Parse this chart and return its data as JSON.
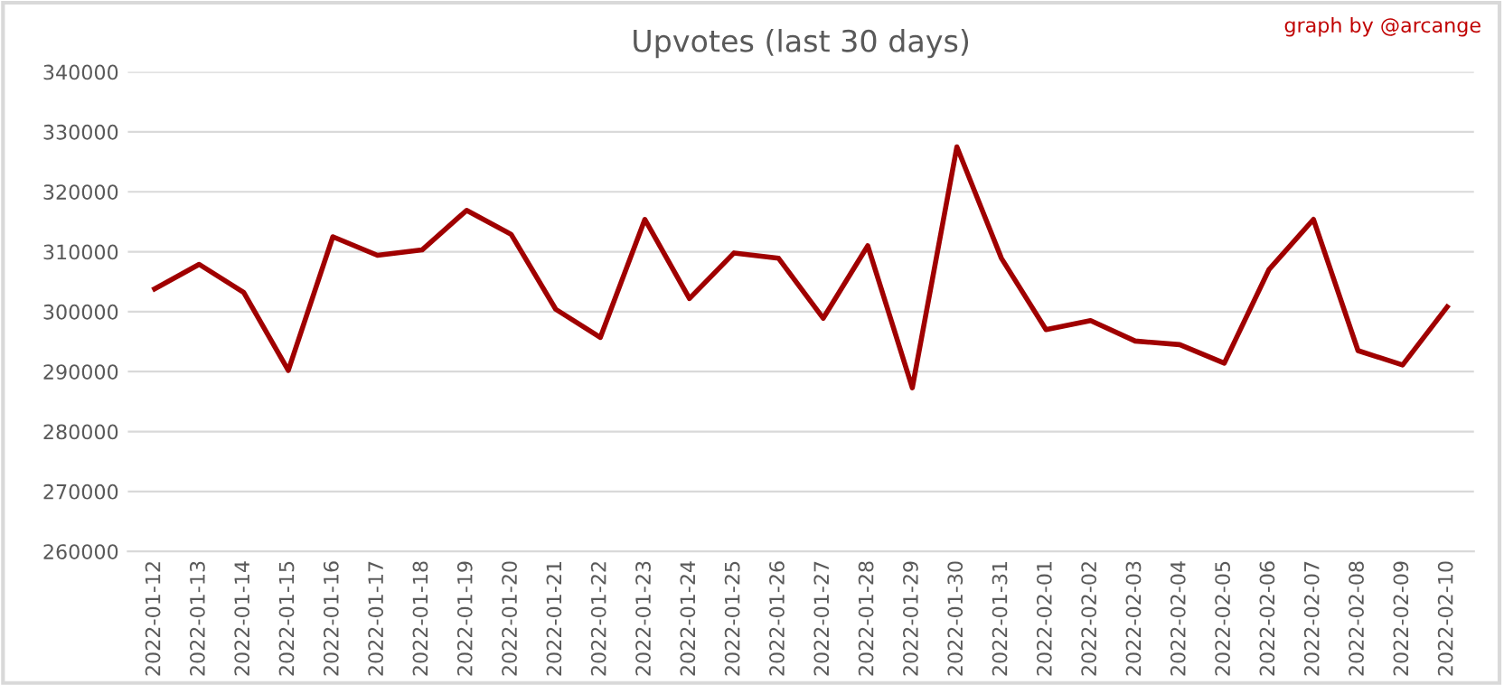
{
  "chart_data": {
    "type": "line",
    "title": "Upvotes (last 30 days)",
    "annotations": [
      "graph by @arcange"
    ],
    "categories": [
      "2022-01-12",
      "2022-01-13",
      "2022-01-14",
      "2022-01-15",
      "2022-01-16",
      "2022-01-17",
      "2022-01-18",
      "2022-01-19",
      "2022-01-20",
      "2022-01-21",
      "2022-01-22",
      "2022-01-23",
      "2022-01-24",
      "2022-01-25",
      "2022-01-26",
      "2022-01-27",
      "2022-01-28",
      "2022-01-29",
      "2022-01-30",
      "2022-01-31",
      "2022-02-01",
      "2022-02-02",
      "2022-02-03",
      "2022-02-04",
      "2022-02-05",
      "2022-02-06",
      "2022-02-07",
      "2022-02-08",
      "2022-02-09",
      "2022-02-10"
    ],
    "series": [
      {
        "color": "#a00000",
        "values": [
          303800,
          307900,
          303200,
          290200,
          312500,
          309400,
          310300,
          316900,
          312900,
          300400,
          295700,
          315400,
          302200,
          309800,
          308900,
          298900,
          311000,
          287300,
          327500,
          308900,
          297000,
          298500,
          295100,
          294500,
          291400,
          307000,
          315400,
          293500,
          291100,
          300800
        ]
      }
    ],
    "ylim": [
      260000,
      340000
    ],
    "yticks": [
      260000,
      270000,
      280000,
      290000,
      300000,
      310000,
      320000,
      330000,
      340000
    ],
    "grid": "y",
    "marker": "none",
    "line_style": "solid"
  }
}
